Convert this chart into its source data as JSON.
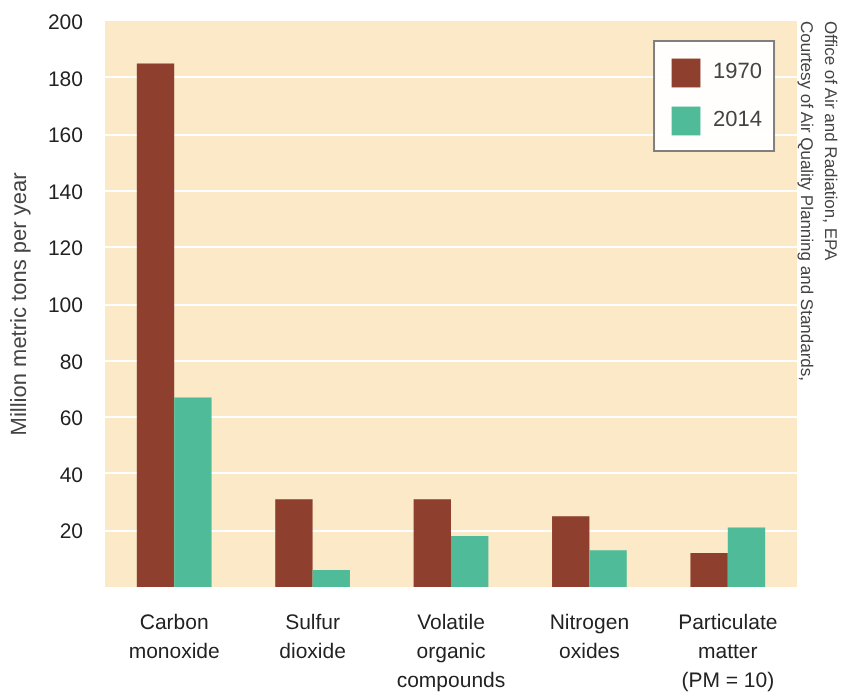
{
  "chart_data": {
    "type": "bar",
    "ylabel": "Million metric tons per year",
    "categories": [
      "Carbon\nmonoxide",
      "Sulfur\ndioxide",
      "Volatile\norganic\ncompounds",
      "Nitrogen\noxides",
      "Particulate\nmatter\n(PM = 10)"
    ],
    "series": [
      {
        "name": "1970",
        "color": "#8e3f2e",
        "values": [
          185,
          31,
          31,
          25,
          12
        ]
      },
      {
        "name": "2014",
        "color": "#4fbb98",
        "values": [
          67,
          6,
          18,
          13,
          21
        ]
      }
    ],
    "ylim": [
      0,
      200
    ],
    "yticks": [
      20,
      40,
      60,
      80,
      100,
      120,
      140,
      160,
      180,
      200
    ],
    "grid": "y",
    "legend": "top right",
    "annotations": [
      "Courtesy of Air Quality Planning and Standards,\nOffice of Air and Radiation, EPA"
    ]
  }
}
